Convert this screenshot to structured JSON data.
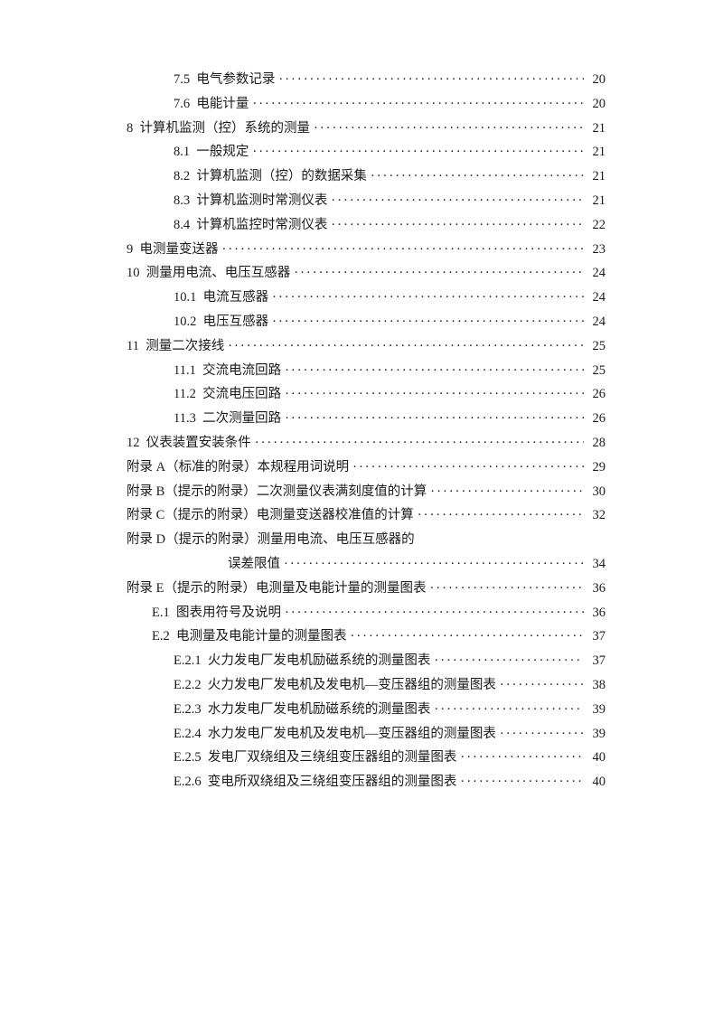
{
  "toc": [
    {
      "sec": "7.5",
      "title": "电气参数记录",
      "page": "20",
      "indent": 2,
      "sec_pad": "  "
    },
    {
      "sec": "7.6",
      "title": "电能计量",
      "page": "20",
      "indent": 2,
      "sec_pad": "  ",
      "title_pad": "  "
    },
    {
      "sec": "8",
      "title": "计算机监测（控）系统的测量",
      "page": "21",
      "indent": 0,
      "sec_pad": "  "
    },
    {
      "sec": "8.1",
      "title": "一般规定",
      "page": "21",
      "indent": 2,
      "sec_pad": "  ",
      "title_pad": "  "
    },
    {
      "sec": "8.2",
      "title": "计算机监测（控）的数据采集",
      "page": "21",
      "indent": 2,
      "sec_pad": "  "
    },
    {
      "sec": "8.3",
      "title": "计算机监测时常测仪表",
      "page": "21",
      "indent": 2,
      "sec_pad": "  ",
      "title_pad": "  "
    },
    {
      "sec": "8.4",
      "title": "计算机监控时常测仪表",
      "page": "22",
      "indent": 2,
      "sec_pad": "  ",
      "title_pad": "  "
    },
    {
      "sec": "9",
      "title": "电测量变送器",
      "page": "23",
      "indent": 0,
      "sec_pad": "  "
    },
    {
      "sec": "10",
      "title": "测量用电流、电压互感器",
      "page": "24",
      "indent": 0,
      "sec_pad": "  ",
      "title_pad": " "
    },
    {
      "sec": "10.1",
      "title": "电流互感器",
      "page": "24",
      "indent": 2,
      "sec_pad": "  ",
      "title_pad": "  "
    },
    {
      "sec": "10.2",
      "title": "电压互感器",
      "page": "24",
      "indent": 2,
      "sec_pad": "  ",
      "title_pad": "  "
    },
    {
      "sec": "11",
      "title": "测量二次接线",
      "page": "25",
      "indent": 0,
      "sec_pad": "  ",
      "title_pad": " "
    },
    {
      "sec": "11.1",
      "title": "交流电流回路",
      "page": "25",
      "indent": 2,
      "sec_pad": "  ",
      "title_pad": "  "
    },
    {
      "sec": "11.2",
      "title": "交流电压回路",
      "page": "26",
      "indent": 2,
      "sec_pad": "  ",
      "title_pad": "  "
    },
    {
      "sec": "11.3",
      "title": "二次测量回路",
      "page": "26",
      "indent": 2,
      "sec_pad": "  ",
      "title_pad": "  "
    },
    {
      "sec": "12",
      "title": "仪表装置安装条件",
      "page": "28",
      "indent": 0,
      "sec_pad": "  ",
      "title_pad": " "
    },
    {
      "sec": "附录 A",
      "title": "（标准的附录）本规程用词说明",
      "page": "29",
      "indent": 0,
      "sec_pad": "",
      "title_pad": "  "
    },
    {
      "sec": "附录 B",
      "title": "（提示的附录）二次测量仪表满刻度值的计算",
      "page": "30",
      "indent": 0,
      "sec_pad": "",
      "title_pad": "  "
    },
    {
      "sec": "附录 C",
      "title": "（提示的附录）电测量变送器校准值的计算",
      "page": "32",
      "indent": 0,
      "sec_pad": "",
      "title_pad": "  "
    },
    {
      "sec": "附录 D",
      "title": "（提示的附录）测量用电流、电压互感器的",
      "page": "",
      "indent": 0,
      "sec_pad": "",
      "nodots": true
    },
    {
      "sec": "",
      "title": "误差限值",
      "page": "34",
      "indent": 0,
      "sec_pad": "",
      "wrap_indent": 112
    },
    {
      "sec": "附录 E",
      "title": "（提示的附录）电测量及电能计量的测量图表",
      "page": "36",
      "indent": 0,
      "sec_pad": "",
      "title_pad": "  "
    },
    {
      "sec": "E.1",
      "title": "图表用符号及说明",
      "page": "36",
      "indent": 1,
      "sec_pad": "  "
    },
    {
      "sec": "E.2",
      "title": "电测量及电能计量的测量图表",
      "page": "37",
      "indent": 1,
      "sec_pad": "  "
    },
    {
      "sec": "E.2.1",
      "title": "火力发电厂发电机励磁系统的测量图表",
      "page": "37",
      "indent": 2,
      "sec_pad": "  ",
      "title_pad": "  "
    },
    {
      "sec": "E.2.2",
      "title": "火力发电厂发电机及发电机—变压器组的测量图表",
      "page": "38",
      "indent": 2,
      "sec_pad": "  ",
      "title_pad": " "
    },
    {
      "sec": "E.2.3",
      "title": "水力发电厂发电机励磁系统的测量图表",
      "page": "39",
      "indent": 2,
      "sec_pad": "  ",
      "title_pad": "  "
    },
    {
      "sec": "E.2.4",
      "title": "水力发电厂发电机及发电机—变压器组的测量图表",
      "page": "39",
      "indent": 2,
      "sec_pad": "  ",
      "title_pad": " "
    },
    {
      "sec": "E.2.5",
      "title": "发电厂双绕组及三绕组变压器组的测量图表",
      "page": "40",
      "indent": 2,
      "sec_pad": "  "
    },
    {
      "sec": "E.2.6",
      "title": "变电所双绕组及三绕组变压器组的测量图表",
      "page": "40",
      "indent": 2,
      "sec_pad": "  "
    }
  ],
  "style": {
    "text_color": "#1a1a1a",
    "background_color": "#ffffff",
    "font_size": 14.5
  }
}
